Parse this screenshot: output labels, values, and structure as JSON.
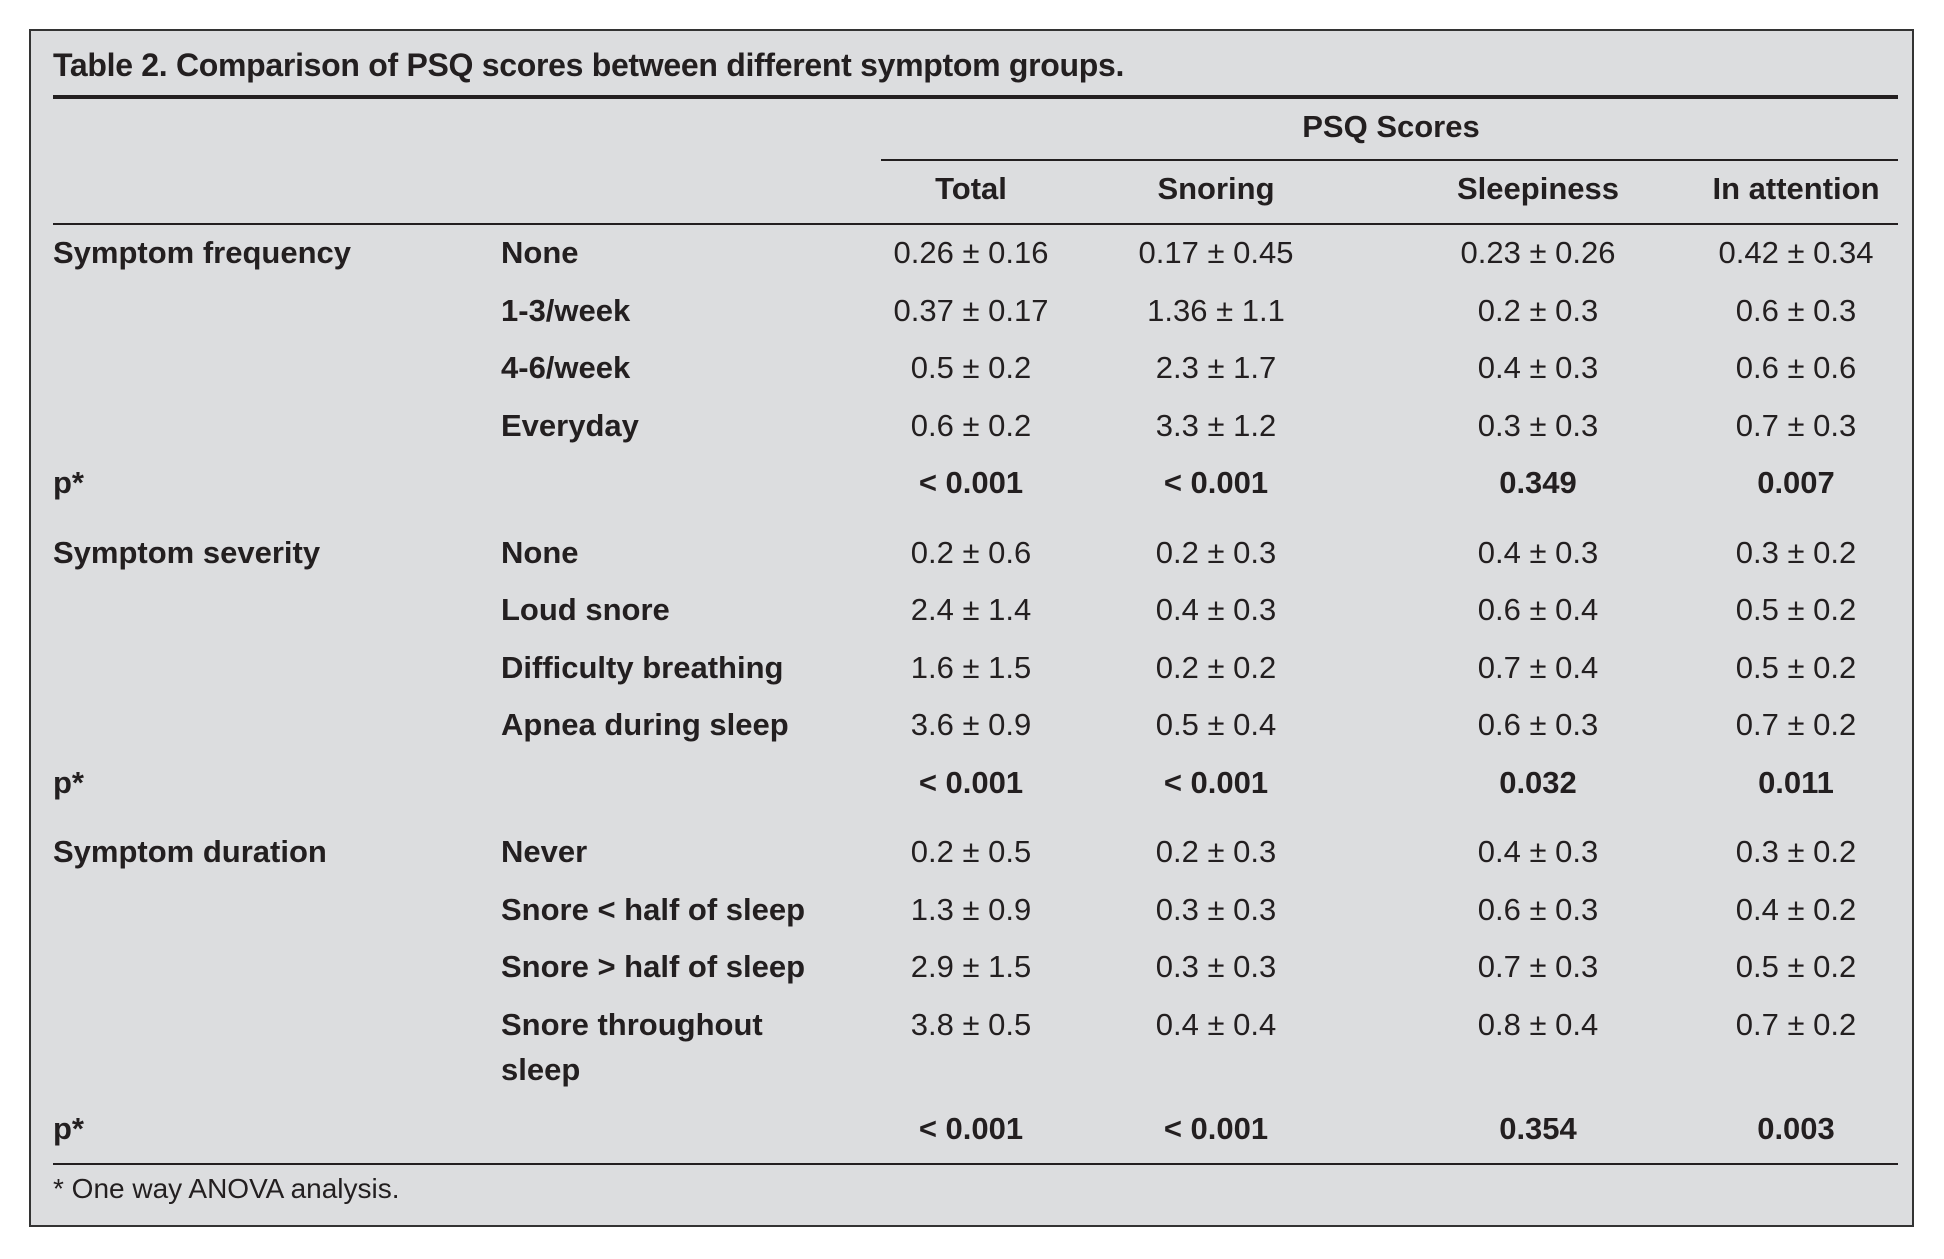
{
  "table": {
    "title": "Table 2. Comparison of PSQ scores between different symptom groups.",
    "group_header": "PSQ Scores",
    "columns": [
      "Total",
      "Snoring",
      "Sleepiness",
      "In attention"
    ],
    "sections": [
      {
        "label": "Symptom frequency",
        "rows": [
          {
            "label": "None",
            "values": [
              "0.26 ± 0.16",
              "0.17 ± 0.45",
              "0.23 ± 0.26",
              "0.42 ± 0.34"
            ]
          },
          {
            "label": "1-3/week",
            "values": [
              "0.37 ± 0.17",
              "1.36 ± 1.1",
              "0.2 ± 0.3",
              "0.6 ± 0.3"
            ]
          },
          {
            "label": "4-6/week",
            "values": [
              "0.5 ± 0.2",
              "2.3 ± 1.7",
              "0.4 ± 0.3",
              "0.6 ± 0.6"
            ]
          },
          {
            "label": "Everyday",
            "values": [
              "0.6 ± 0.2",
              "3.3 ± 1.2",
              "0.3 ± 0.3",
              "0.7 ± 0.3"
            ]
          }
        ],
        "p_label": "p*",
        "p_values": [
          "< 0.001",
          "< 0.001",
          "0.349",
          "0.007"
        ]
      },
      {
        "label": "Symptom severity",
        "rows": [
          {
            "label": "None",
            "values": [
              "0.2 ± 0.6",
              "0.2 ± 0.3",
              "0.4 ± 0.3",
              "0.3 ± 0.2"
            ]
          },
          {
            "label": "Loud snore",
            "values": [
              "2.4 ± 1.4",
              "0.4 ± 0.3",
              "0.6 ± 0.4",
              "0.5 ± 0.2"
            ]
          },
          {
            "label": "Difficulty breathing",
            "values": [
              "1.6 ± 1.5",
              "0.2 ± 0.2",
              "0.7 ± 0.4",
              "0.5 ± 0.2"
            ]
          },
          {
            "label": "Apnea during sleep",
            "values": [
              "3.6 ± 0.9",
              "0.5 ± 0.4",
              "0.6 ± 0.3",
              "0.7 ± 0.2"
            ]
          }
        ],
        "p_label": "p*",
        "p_values": [
          "< 0.001",
          "< 0.001",
          "0.032",
          "0.011"
        ]
      },
      {
        "label": "Symptom duration",
        "rows": [
          {
            "label": "Never",
            "values": [
              "0.2 ± 0.5",
              "0.2 ± 0.3",
              "0.4 ± 0.3",
              "0.3 ± 0.2"
            ]
          },
          {
            "label": "Snore < half of sleep",
            "values": [
              "1.3 ± 0.9",
              "0.3 ± 0.3",
              "0.6 ± 0.3",
              "0.4 ± 0.2"
            ]
          },
          {
            "label": "Snore > half of sleep",
            "values": [
              "2.9 ± 1.5",
              "0.3 ± 0.3",
              "0.7 ± 0.3",
              "0.5 ± 0.2"
            ]
          },
          {
            "label": "Snore throughout",
            "label_line2": "sleep",
            "values": [
              "3.8 ± 0.5",
              "0.4 ± 0.4",
              "0.8 ± 0.4",
              "0.7 ± 0.2"
            ]
          }
        ],
        "p_label": "p*",
        "p_values": [
          "< 0.001",
          "< 0.001",
          "0.354",
          "0.003"
        ]
      }
    ],
    "footnote": "* One way ANOVA analysis."
  }
}
